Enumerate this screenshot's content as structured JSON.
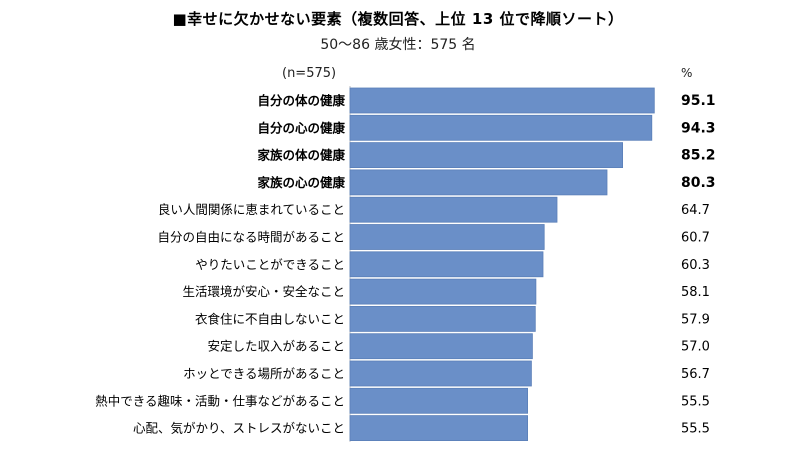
{
  "chart_data": {
    "type": "bar",
    "orientation": "horizontal",
    "title": "■幸せに欠かせない要素（複数回答、上位 13 位で降順ソート）",
    "subtitle": "50～86 歳女性：575 名",
    "sample_label": "(n=575)",
    "unit": "%",
    "categories": [
      "自分の体の健康",
      "自分の心の健康",
      "家族の体の健康",
      "家族の心の健康",
      "良い人間関係に恵まれていること",
      "自分の自由になる時間があること",
      "やりたいことができること",
      "生活環境が安心・安全なこと",
      "衣食住に不自由しないこと",
      "安定した収入があること",
      "ホッとできる場所があること",
      "熱中できる趣味・活動・仕事などがあること",
      "心配、気がかり、ストレスがないこと"
    ],
    "values": [
      95.1,
      94.3,
      85.2,
      80.3,
      64.7,
      60.7,
      60.3,
      58.1,
      57.9,
      57.0,
      56.7,
      55.5,
      55.5
    ],
    "value_labels": [
      "95.1",
      "94.3",
      "85.2",
      "80.3",
      "64.7",
      "60.7",
      "60.3",
      "58.1",
      "57.9",
      "57.0",
      "56.7",
      "55.5",
      "55.5"
    ],
    "highlighted_top": 4,
    "xlim": [
      0,
      100
    ],
    "bar_color": "#6a8fc8",
    "bar_border_color": "#5a7fb8"
  }
}
